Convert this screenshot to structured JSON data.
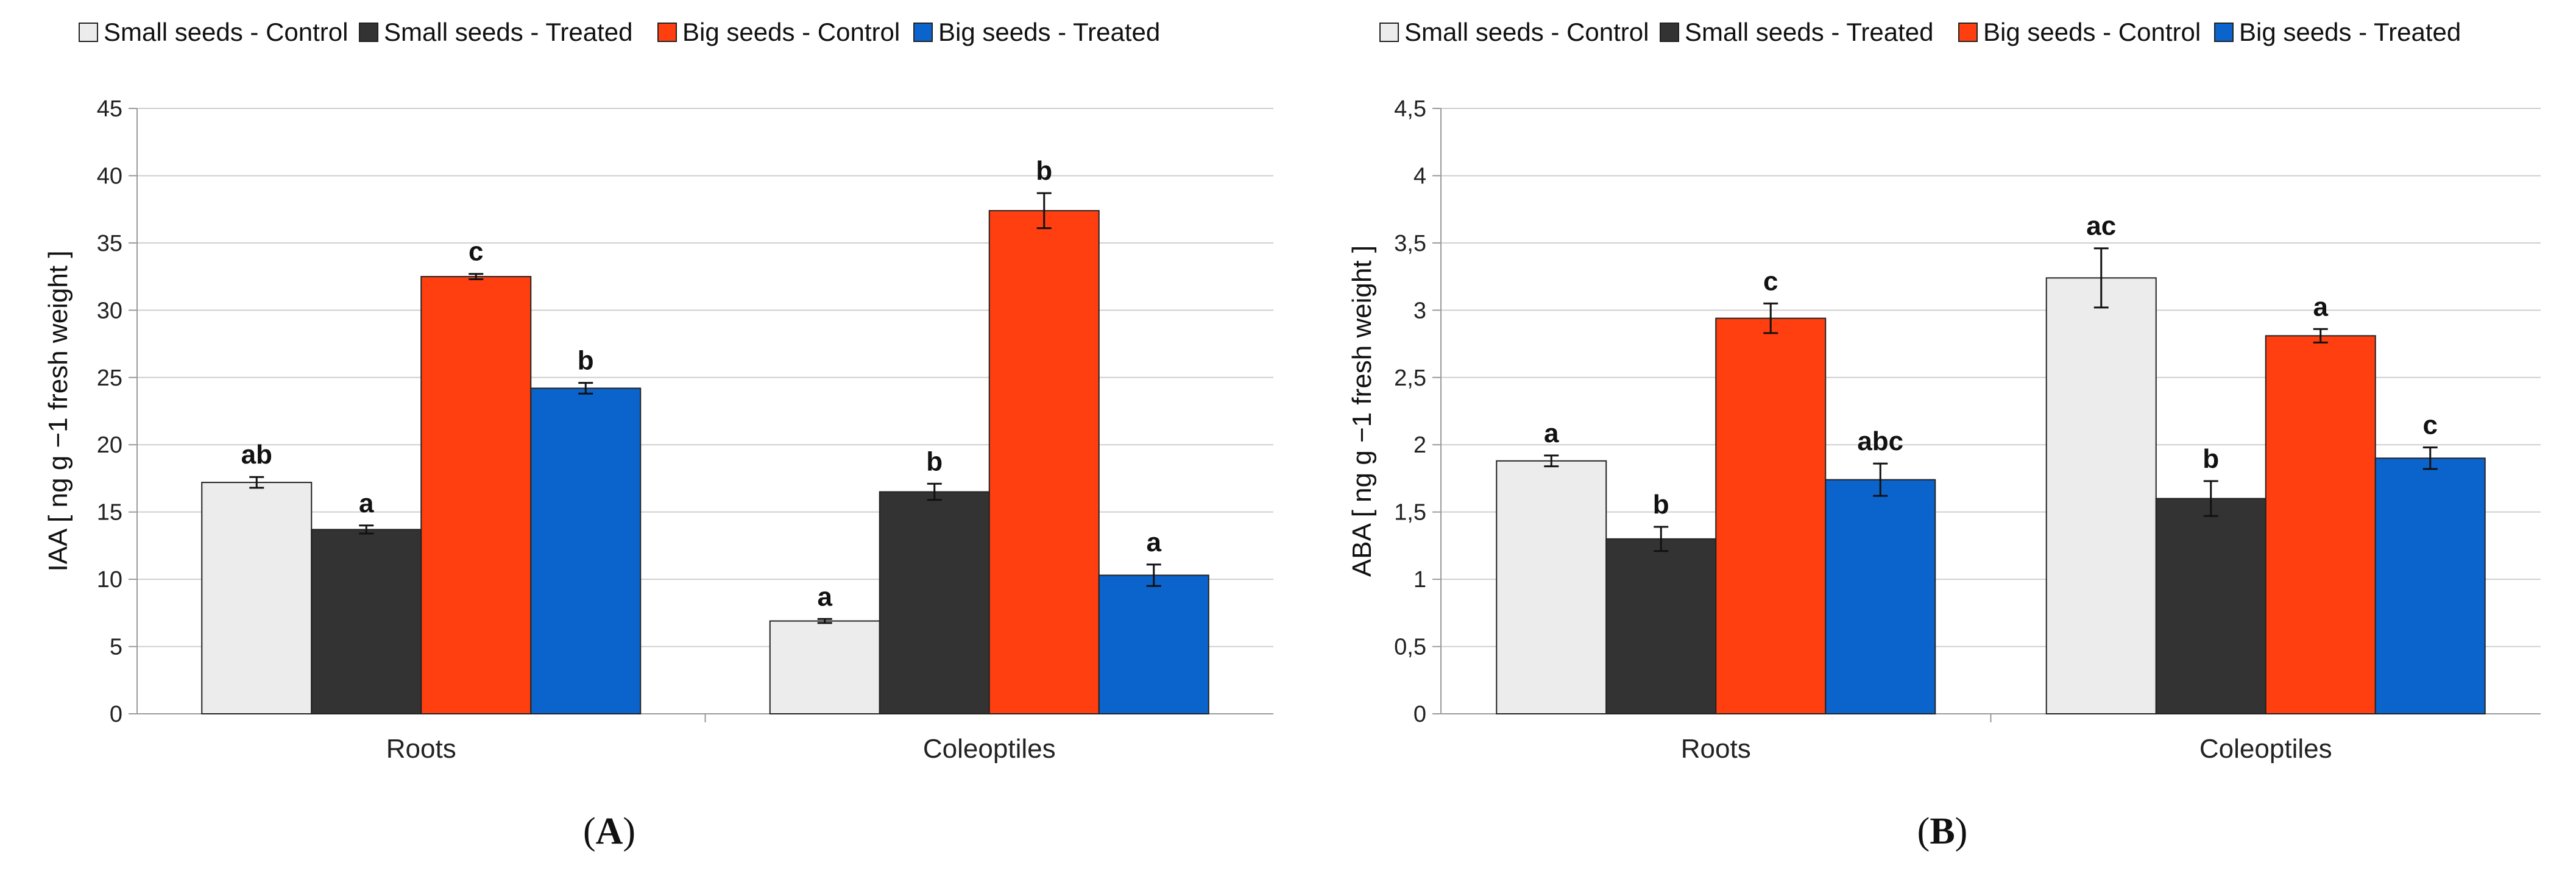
{
  "chart_data": [
    {
      "type": "bar",
      "panel_label": "A",
      "title": "",
      "xlabel": "",
      "ylabel": "IAA [ ng  g −1   fresh  weight ]",
      "ylim": [
        0,
        45
      ],
      "yticks": [
        0,
        5,
        10,
        15,
        20,
        25,
        30,
        35,
        40,
        45
      ],
      "ytick_labels": [
        "0",
        "5",
        "10",
        "15",
        "20",
        "25",
        "30",
        "35",
        "40",
        "45"
      ],
      "grid": true,
      "legend_position": "top",
      "categories": [
        "Roots",
        "Coleoptiles"
      ],
      "series": [
        {
          "name": "Small seeds - Control",
          "color": "#ececec",
          "values": [
            17.2,
            6.9
          ],
          "errors": [
            0.4,
            0.15
          ],
          "letters": [
            "ab",
            "a"
          ]
        },
        {
          "name": "Small seeds - Treated",
          "color": "#333333",
          "values": [
            13.7,
            16.5
          ],
          "errors": [
            0.3,
            0.6
          ],
          "letters": [
            "a",
            "b"
          ]
        },
        {
          "name": "Big seeds - Control",
          "color": "#ff3f0f",
          "values": [
            32.5,
            37.4
          ],
          "errors": [
            0.2,
            1.3
          ],
          "letters": [
            "c",
            "b"
          ]
        },
        {
          "name": "Big seeds - Treated",
          "color": "#0a64cc",
          "values": [
            24.2,
            10.3
          ],
          "errors": [
            0.4,
            0.8
          ],
          "letters": [
            "b",
            "a"
          ]
        }
      ]
    },
    {
      "type": "bar",
      "panel_label": "B",
      "title": "",
      "xlabel": "",
      "ylabel": "ABA [ ng  g −1   fresh  weight ]",
      "ylim": [
        0,
        4.5
      ],
      "yticks": [
        0,
        0.5,
        1,
        1.5,
        2,
        2.5,
        3,
        3.5,
        4,
        4.5
      ],
      "ytick_labels": [
        "0",
        "0,5",
        "1",
        "1,5",
        "2",
        "2,5",
        "3",
        "3,5",
        "4",
        "4,5"
      ],
      "grid": true,
      "legend_position": "top",
      "categories": [
        "Roots",
        "Coleoptiles"
      ],
      "series": [
        {
          "name": "Small seeds - Control",
          "color": "#ececec",
          "values": [
            1.88,
            3.24
          ],
          "errors": [
            0.04,
            0.22
          ],
          "letters": [
            "a",
            "ac"
          ]
        },
        {
          "name": "Small seeds - Treated",
          "color": "#333333",
          "values": [
            1.3,
            1.6
          ],
          "errors": [
            0.09,
            0.13
          ],
          "letters": [
            "b",
            "b"
          ]
        },
        {
          "name": "Big seeds - Control",
          "color": "#ff3f0f",
          "values": [
            2.94,
            2.81
          ],
          "errors": [
            0.11,
            0.05
          ],
          "letters": [
            "c",
            "a"
          ]
        },
        {
          "name": "Big seeds - Treated",
          "color": "#0a64cc",
          "values": [
            1.74,
            1.9
          ],
          "errors": [
            0.12,
            0.08
          ],
          "letters": [
            "abc",
            "c"
          ]
        }
      ]
    }
  ]
}
